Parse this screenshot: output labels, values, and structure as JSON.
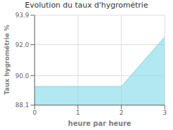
{
  "chart_data": {
    "type": "area",
    "title": "Evolution du taux d'hygrométrie",
    "xlabel": "heure par heure",
    "ylabel": "Taux hygrométrie %",
    "x": [
      0,
      1,
      2,
      3
    ],
    "values": [
      89.3,
      89.3,
      89.3,
      92.5
    ],
    "xlim": [
      0,
      3
    ],
    "ylim": [
      88.1,
      93.9
    ],
    "xticks": [
      0,
      1,
      2,
      3
    ],
    "yticks": [
      88.1,
      {
        "value": 90.0,
        "label": "90.0"
      },
      {
        "value": 92.0,
        "label": "92.0"
      },
      93.9
    ],
    "color": "#7fd8e8",
    "grid": true
  }
}
